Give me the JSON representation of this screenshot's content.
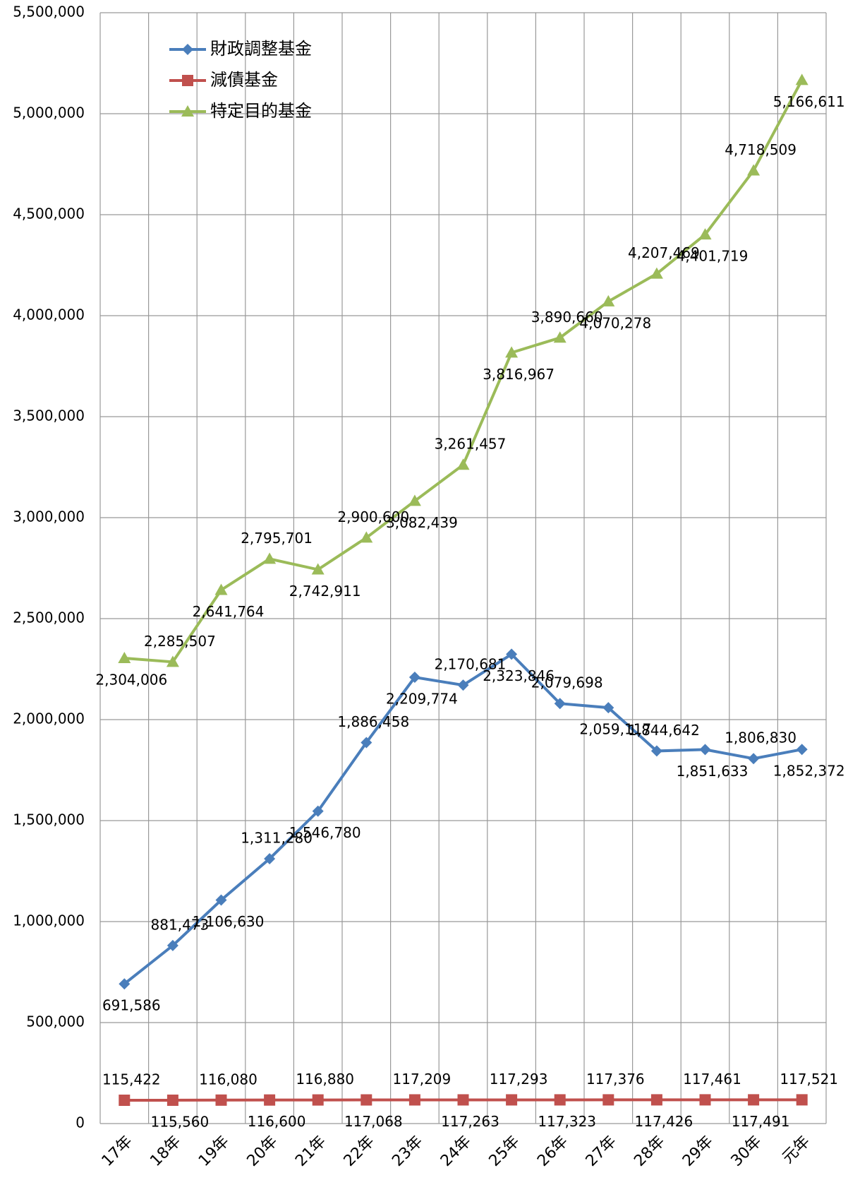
{
  "chart_data": {
    "type": "line",
    "categories": [
      "17年",
      "18年",
      "19年",
      "20年",
      "21年",
      "22年",
      "23年",
      "24年",
      "25年",
      "26年",
      "27年",
      "28年",
      "29年",
      "30年",
      "元年"
    ],
    "ylim": [
      0,
      5500000
    ],
    "yticks": [
      0,
      {
        "value": 500000,
        "label": "500,000"
      },
      {
        "value": 1000000,
        "label": "1,000,000"
      },
      {
        "value": 1500000,
        "label": "1,500,000"
      },
      {
        "value": 2000000,
        "label": "2,000,000"
      },
      {
        "value": 2500000,
        "label": "2,500,000"
      },
      {
        "value": 3000000,
        "label": "3,000,000"
      },
      {
        "value": 3500000,
        "label": "3,500,000"
      },
      {
        "value": 4000000,
        "label": "4,000,000"
      },
      {
        "value": 4500000,
        "label": "4,500,000"
      },
      {
        "value": 5000000,
        "label": "5,000,000"
      },
      {
        "value": 5500000,
        "label": "5,500,000"
      }
    ],
    "grid": true,
    "legend": "upper left",
    "series": [
      {
        "name": "財政調整基金",
        "color": "#4a7ebb",
        "marker": "diamond",
        "values": [
          691586,
          881473,
          1106630,
          1311280,
          1546780,
          1886458,
          2209774,
          2170681,
          2323846,
          2079698,
          2059117,
          1844642,
          1851633,
          1806830,
          1852372
        ],
        "value_labels": [
          "691,586",
          "881,473",
          "1,106,630",
          "1,311,280",
          "1,546,780",
          "1,886,458",
          "2,209,774",
          "2,170,681",
          "2,323,846",
          "2,079,698",
          "2,059,117",
          "1,844,642",
          "1,851,633",
          "1,806,830",
          "1,852,372"
        ]
      },
      {
        "name": "減債基金",
        "color": "#c0504d",
        "marker": "square",
        "values": [
          115422,
          115560,
          116080,
          116600,
          116880,
          117068,
          117209,
          117263,
          117293,
          117323,
          117376,
          117426,
          117461,
          117491,
          117521
        ],
        "value_labels": [
          "115,422",
          "115,560",
          "116,080",
          "116,600",
          "116,880",
          "117,068",
          "117,209",
          "117,263",
          "117,293",
          "117,323",
          "117,376",
          "117,426",
          "117,461",
          "117,491",
          "117,521"
        ]
      },
      {
        "name": "特定目的基金",
        "color": "#9bbb59",
        "marker": "triangle",
        "values": [
          2304006,
          2285507,
          2641764,
          2795701,
          2742911,
          2900600,
          3082439,
          3261457,
          3816967,
          3890660,
          4070278,
          4207469,
          4401719,
          4718509,
          5166611
        ],
        "value_labels": [
          "2,304,006",
          "2,285,507",
          "2,641,764",
          "2,795,701",
          "2,742,911",
          "2,900,600",
          "3,082,439",
          "3,261,457",
          "3,816,967",
          "3,890,660",
          "4,070,278",
          "4,207,469",
          "4,401,719",
          "4,718,509",
          "5,166,611"
        ]
      }
    ]
  }
}
